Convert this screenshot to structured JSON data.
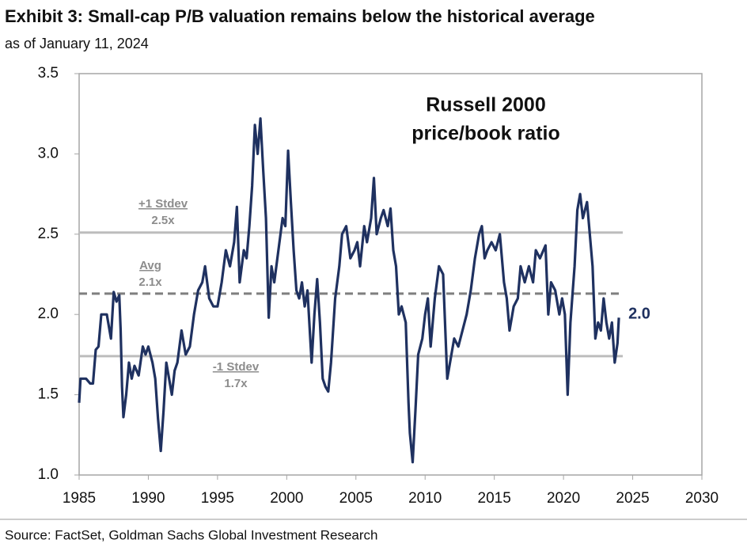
{
  "chart_data": {
    "type": "line",
    "title": "Exhibit 3: Small-cap P/B valuation remains below the historical average",
    "subtitle": "as of January 11, 2024",
    "inner_title": [
      "Russell 2000",
      "price/book ratio"
    ],
    "source": "Source: FactSet, Goldman Sachs Global Investment Research",
    "color": "#1f3160",
    "end_label": "2.0",
    "x": [
      1985.0,
      1985.1,
      1985.5,
      1985.8,
      1986.0,
      1986.2,
      1986.4,
      1986.6,
      1987.0,
      1987.3,
      1987.5,
      1987.7,
      1987.9,
      1988.0,
      1988.1,
      1988.2,
      1988.4,
      1988.6,
      1988.8,
      1989.0,
      1989.3,
      1989.6,
      1989.8,
      1990.0,
      1990.3,
      1990.5,
      1990.7,
      1990.9,
      1991.1,
      1991.3,
      1991.5,
      1991.7,
      1991.9,
      1992.1,
      1992.4,
      1992.7,
      1993.0,
      1993.3,
      1993.6,
      1993.9,
      1994.1,
      1994.4,
      1994.7,
      1995.0,
      1995.3,
      1995.6,
      1995.9,
      1996.2,
      1996.4,
      1996.6,
      1996.9,
      1997.1,
      1997.3,
      1997.5,
      1997.7,
      1997.9,
      1998.1,
      1998.3,
      1998.5,
      1998.7,
      1998.9,
      1999.1,
      1999.4,
      1999.7,
      1999.9,
      2000.1,
      2000.3,
      2000.5,
      2000.7,
      2000.9,
      2001.1,
      2001.3,
      2001.5,
      2001.8,
      2002.0,
      2002.2,
      2002.4,
      2002.6,
      2002.8,
      2003.0,
      2003.2,
      2003.5,
      2003.8,
      2004.0,
      2004.3,
      2004.6,
      2004.9,
      2005.1,
      2005.3,
      2005.6,
      2005.8,
      2006.1,
      2006.3,
      2006.5,
      2006.8,
      2007.0,
      2007.3,
      2007.5,
      2007.7,
      2007.9,
      2008.1,
      2008.3,
      2008.6,
      2008.8,
      2008.9,
      2009.1,
      2009.3,
      2009.5,
      2009.8,
      2010.0,
      2010.2,
      2010.4,
      2010.7,
      2011.0,
      2011.3,
      2011.6,
      2011.9,
      2012.1,
      2012.4,
      2012.7,
      2013.0,
      2013.3,
      2013.6,
      2013.9,
      2014.1,
      2014.3,
      2014.5,
      2014.8,
      2015.1,
      2015.4,
      2015.7,
      2015.9,
      2016.1,
      2016.4,
      2016.7,
      2016.9,
      2017.2,
      2017.5,
      2017.8,
      2018.0,
      2018.3,
      2018.7,
      2018.9,
      2019.1,
      2019.4,
      2019.7,
      2019.9,
      2020.1,
      2020.3,
      2020.5,
      2020.8,
      2021.0,
      2021.2,
      2021.4,
      2021.7,
      2021.9,
      2022.1,
      2022.3,
      2022.5,
      2022.7,
      2022.9,
      2023.1,
      2023.3,
      2023.5,
      2023.7,
      2023.9,
      2024.0
    ],
    "values": [
      1.45,
      1.6,
      1.6,
      1.57,
      1.57,
      1.78,
      1.8,
      2.0,
      2.0,
      1.85,
      2.14,
      2.08,
      2.12,
      1.9,
      1.55,
      1.36,
      1.5,
      1.7,
      1.6,
      1.68,
      1.62,
      1.8,
      1.75,
      1.8,
      1.7,
      1.6,
      1.35,
      1.15,
      1.4,
      1.7,
      1.6,
      1.5,
      1.65,
      1.7,
      1.9,
      1.75,
      1.8,
      2.0,
      2.15,
      2.2,
      2.3,
      2.1,
      2.05,
      2.05,
      2.2,
      2.4,
      2.3,
      2.45,
      2.67,
      2.2,
      2.4,
      2.35,
      2.55,
      2.8,
      3.18,
      3.0,
      3.22,
      2.9,
      2.6,
      1.98,
      2.3,
      2.2,
      2.4,
      2.6,
      2.55,
      3.02,
      2.7,
      2.4,
      2.15,
      2.1,
      2.2,
      2.05,
      2.15,
      1.7,
      2.0,
      2.22,
      1.95,
      1.6,
      1.55,
      1.52,
      1.7,
      2.1,
      2.3,
      2.5,
      2.55,
      2.35,
      2.4,
      2.45,
      2.3,
      2.55,
      2.45,
      2.6,
      2.85,
      2.5,
      2.6,
      2.65,
      2.55,
      2.66,
      2.4,
      2.3,
      2.0,
      2.05,
      1.95,
      1.45,
      1.26,
      1.08,
      1.4,
      1.75,
      1.85,
      2.0,
      2.1,
      1.8,
      2.1,
      2.3,
      2.25,
      1.6,
      1.75,
      1.85,
      1.8,
      1.9,
      2.0,
      2.15,
      2.35,
      2.5,
      2.55,
      2.35,
      2.4,
      2.45,
      2.4,
      2.5,
      2.2,
      2.1,
      1.9,
      2.05,
      2.1,
      2.3,
      2.2,
      2.3,
      2.2,
      2.4,
      2.35,
      2.43,
      2.0,
      2.2,
      2.15,
      2.0,
      2.1,
      2.0,
      1.5,
      1.95,
      2.3,
      2.65,
      2.75,
      2.6,
      2.7,
      2.5,
      2.3,
      1.85,
      1.95,
      1.9,
      2.1,
      1.95,
      1.85,
      1.95,
      1.7,
      1.82,
      1.98
    ],
    "reference_lines": [
      {
        "name": "+1 Stdev",
        "label": "2.5x",
        "value": 2.51,
        "color": "#bdbdbd",
        "dashed": false
      },
      {
        "name": "Avg",
        "label": "2.1x",
        "value": 2.13,
        "color": "#7f7f7f",
        "dashed": true
      },
      {
        "name": "-1 Stdev",
        "label": "1.7x",
        "value": 1.74,
        "color": "#bdbdbd",
        "dashed": false
      }
    ],
    "xlim": [
      1985,
      2030
    ],
    "xticks": [
      1985,
      1990,
      1995,
      2000,
      2005,
      2010,
      2015,
      2020,
      2025,
      2030
    ],
    "ylim": [
      1.0,
      3.5
    ],
    "yticks": [
      {
        "value": 1.0,
        "label": "1.0"
      },
      1.5,
      {
        "value": 2.0,
        "label": "2.0"
      },
      2.5,
      {
        "value": 3.0,
        "label": "3.0"
      },
      3.5
    ]
  }
}
